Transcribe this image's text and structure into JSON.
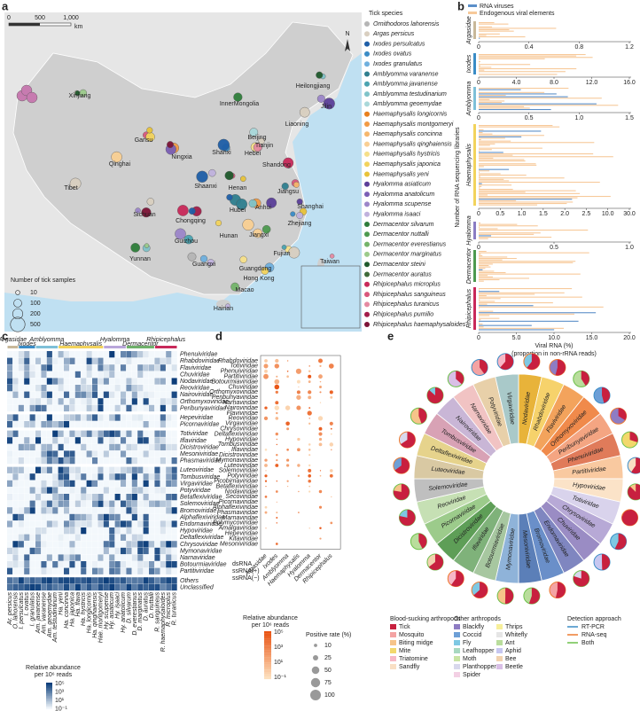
{
  "panel_labels": [
    "a",
    "b",
    "c",
    "d",
    "e"
  ],
  "map": {
    "scale_ticks": [
      "0",
      "500",
      "1,000"
    ],
    "scale_unit": "km",
    "north": "N",
    "provinces": [
      "Heilongjiang",
      "Jilin",
      "Liaoning",
      "InnerMongolia",
      "Xinjiang",
      "Gansu",
      "Qinghai",
      "Tibet",
      "Ningxia",
      "Shanxi",
      "Hebei",
      "Beijing",
      "Tianjin",
      "Shandong",
      "Shaanxi",
      "Henan",
      "Jiangsu",
      "Anhui",
      "Shanghai",
      "Hubei",
      "Sichuan",
      "Chongqing",
      "Zhejiang",
      "Jiangxi",
      "Hunan",
      "Guizhou",
      "Fujian",
      "Yunnan",
      "Guangxi",
      "Guangdong",
      "Hong Kong",
      "Macao",
      "Taiwan",
      "Hainan"
    ],
    "legend_title": "Tick species",
    "species": [
      {
        "name": "Ornithodoros lahorensis",
        "color": "#b5b5b5"
      },
      {
        "name": "Argas persicus",
        "color": "#d9cfc0"
      },
      {
        "name": "Ixodes persulcatus",
        "color": "#1f5fa8"
      },
      {
        "name": "Ixodes ovatus",
        "color": "#3a8cc6"
      },
      {
        "name": "Ixodes granulatus",
        "color": "#6fb0de"
      },
      {
        "name": "Amblyomma varanense",
        "color": "#2f7f8f"
      },
      {
        "name": "Amblyomma javanense",
        "color": "#4aa3b0"
      },
      {
        "name": "Amblyomma testudinarium",
        "color": "#7fc3c9"
      },
      {
        "name": "Amblyomma geoemydae",
        "color": "#a9d8da"
      },
      {
        "name": "Haemaphysalis longicornis",
        "color": "#e8801e"
      },
      {
        "name": "Haemaphysalis montgomeryi",
        "color": "#f29b44"
      },
      {
        "name": "Haemaphysalis concinna",
        "color": "#f6b76c"
      },
      {
        "name": "Haemaphysalis qinghaiensis",
        "color": "#f9cf94"
      },
      {
        "name": "Haemaphysalis hystricis",
        "color": "#f6e08a"
      },
      {
        "name": "Haemaphysalis japonica",
        "color": "#f2d35c"
      },
      {
        "name": "Haemaphysalis yeni",
        "color": "#e8c33a"
      },
      {
        "name": "Hyalomma asiaticum",
        "color": "#5b3f99"
      },
      {
        "name": "Hyalomma anatolicum",
        "color": "#7a5fb5"
      },
      {
        "name": "Hyalomma scupense",
        "color": "#9c86c9"
      },
      {
        "name": "Hyalomma isaaci",
        "color": "#c0b2dd"
      },
      {
        "name": "Dermacentor silvarum",
        "color": "#2e7d3a"
      },
      {
        "name": "Dermacentor nuttalli",
        "color": "#4d9a4f"
      },
      {
        "name": "Dermacentor everestianus",
        "color": "#74b46a"
      },
      {
        "name": "Dermacentor marginatus",
        "color": "#9ccb8b"
      },
      {
        "name": "Dermacentor steini",
        "color": "#1f5a2c"
      },
      {
        "name": "Dermacentor auratus",
        "color": "#3f6b3a"
      },
      {
        "name": "Rhipicephalus microplus",
        "color": "#c8295a"
      },
      {
        "name": "Rhipicephalus sanguineus",
        "color": "#d9577c"
      },
      {
        "name": "Rhipicephalus turanicus",
        "color": "#e58aa2"
      },
      {
        "name": "Rhipicephalus pumilio",
        "color": "#a31d4a"
      },
      {
        "name": "Rhipicephalus haemaphysaloides",
        "color": "#7d1437"
      }
    ],
    "size_legend": {
      "title": "Number of tick samples",
      "values": [
        10,
        100,
        200,
        500
      ]
    }
  },
  "viral_rna": {
    "legend": [
      {
        "name": "RNA viruses",
        "color": "#5b8fc9"
      },
      {
        "name": "Endogenous viral elements",
        "color": "#f7c99a"
      }
    ],
    "groups": [
      {
        "name": "Argasidae",
        "color": "#c8b89a",
        "ticks": [
          "0",
          "0.4",
          "0.8",
          "1.2"
        ]
      },
      {
        "name": "Ixodes",
        "color": "#3a8cc6",
        "ticks": [
          "0",
          "4.0",
          "8.0",
          "12.0",
          "16.0"
        ]
      },
      {
        "name": "Amblyomma",
        "color": "#7ec0d8",
        "ticks": [
          "0",
          "0.5",
          "1.0",
          "1.5"
        ]
      },
      {
        "name": "Haemaphysalis",
        "color": "#f2d35c",
        "ticks": [
          "0",
          "0.5",
          "1.0",
          "1.5",
          "2.0",
          "2.5",
          "10.0",
          "30.0"
        ]
      },
      {
        "name": "Hyalomma",
        "color": "#8a7cc4",
        "ticks": [
          "0",
          "0.5",
          "1.0"
        ]
      },
      {
        "name": "Dermacentor",
        "color": "#4d9a4f",
        "ticks": []
      },
      {
        "name": "Rhipicephalus",
        "color": "#c8295a",
        "ticks": [
          "0",
          "5.0",
          "10.0",
          "15.0",
          "20.0"
        ]
      }
    ],
    "y_label": "Number of RNA sequencing libraries",
    "x_label": [
      "Viral RNA (%)",
      "(proportion in non-rRNA reads)"
    ]
  },
  "heatmap": {
    "genera": [
      {
        "name": "Argasidae",
        "color": "#c8b89a"
      },
      {
        "name": "Ixodes",
        "color": "#3a8cc6"
      },
      {
        "name": "Amblyomma",
        "color": "#7ec0d8"
      },
      {
        "name": "Haemaphysalis",
        "color": "#f2d35c"
      },
      {
        "name": "Hyalomma",
        "color": "#b9a6da"
      },
      {
        "name": "Dermacentor",
        "color": "#6fb06a"
      },
      {
        "name": "Rhipicephalus",
        "color": "#c8295a"
      }
    ],
    "columns": [
      "Ar. persicus",
      "O. lahorensis",
      "I. persulcatus",
      "I. ovatus",
      "I. granulatus",
      "Am. javanense",
      "Am. varanense",
      "Am. geoemydae",
      "Am. testudinarium",
      "Ha. yeni",
      "Ha. concinna",
      "Ha. japonica",
      "Ha. flava",
      "Ha. hystricis",
      "Ha. longicornis",
      "Ha. qinghaiensis",
      "Hae. montgomeryi",
      "Hy. scupense",
      "Hy. asiaticum",
      "Hy. isaaci",
      "Hy. anatolicum",
      "D. silvarum",
      "D. everestianus",
      "D. marginatus",
      "D. auratus",
      "D. nuttalli",
      "R. sanguineus",
      "R. haemaphysaloides",
      "R. microplus",
      "R. turanicus"
    ],
    "families": [
      {
        "name": "Phenuiviridae",
        "color": "#7a3f9c"
      },
      {
        "name": "Rhabdoviridae",
        "color": "#7a3f9c"
      },
      {
        "name": "Flaviviridae",
        "color": "#9a7a2a"
      },
      {
        "name": "Chuviridae",
        "color": "#7a3f9c"
      },
      {
        "name": "Nodaviridae",
        "color": "#9a7a2a"
      },
      {
        "name": "Reoviridae",
        "color": "#3a67b0"
      },
      {
        "name": "Nairoviridae",
        "color": "#7a3f9c"
      },
      {
        "name": "Orthomyxoviridae",
        "color": "#7a3f9c"
      },
      {
        "name": "Peribunyaviridae",
        "color": "#7a3f9c"
      },
      {
        "name": "Hepeviridae",
        "color": "#9a7a2a"
      },
      {
        "name": "Picornaviridae",
        "color": "#9a7a2a"
      },
      {
        "name": "Totiviridae",
        "color": "#3a67b0"
      },
      {
        "name": "Iflaviridae",
        "color": "#9a7a2a"
      },
      {
        "name": "Dicistroviridae",
        "color": "#9a7a2a"
      },
      {
        "name": "Mesoniviridae",
        "color": "#9a7a2a"
      },
      {
        "name": "Phasmaviridae",
        "color": "#7a3f9c"
      },
      {
        "name": "Luteoviridae",
        "color": "#9a7a2a"
      },
      {
        "name": "Tombusviridae",
        "color": "#9a7a2a"
      },
      {
        "name": "Virgaviridae",
        "color": "#9a7a2a"
      },
      {
        "name": "Potyviridae",
        "color": "#9a7a2a"
      },
      {
        "name": "Betaflexiviridae",
        "color": "#9a7a2a"
      },
      {
        "name": "Solemoviridae",
        "color": "#9a7a2a"
      },
      {
        "name": "Bromoviridae",
        "color": "#9a7a2a"
      },
      {
        "name": "Alphaflexiviridae",
        "color": "#9a7a2a"
      },
      {
        "name": "Endornaviridae",
        "color": "#3a67b0"
      },
      {
        "name": "Hypoviridae",
        "color": "#9a7a2a"
      },
      {
        "name": "Deltaflexiviridae",
        "color": "#9a7a2a"
      },
      {
        "name": "Chrysoviridae",
        "color": "#3a67b0"
      },
      {
        "name": "Mymonaviridae",
        "color": "#7a3f9c"
      },
      {
        "name": "Narnaviridae",
        "color": "#9a7a2a"
      },
      {
        "name": "Botourmiaviridae",
        "color": "#9a7a2a"
      },
      {
        "name": "Partitiviridae",
        "color": "#3a67b0"
      },
      {
        "name": "Others",
        "color": "#222222"
      },
      {
        "name": "Unclassified",
        "color": "#222222"
      }
    ],
    "legend_title": [
      "Relative abundance",
      "per 10⁶ reads"
    ],
    "legend_ticks": [
      "10⁵",
      "10³",
      "10¹",
      "10⁻¹"
    ]
  },
  "dotplot": {
    "families": [
      {
        "name": "Rhabdoviridae",
        "color": "#7a3f9c"
      },
      {
        "name": "Totiviridae",
        "color": "#3a67b0"
      },
      {
        "name": "Phenuiviridae",
        "color": "#7a3f9c"
      },
      {
        "name": "Partitiviridae",
        "color": "#3a67b0"
      },
      {
        "name": "Botourmiaviridae",
        "color": "#9a7a2a"
      },
      {
        "name": "Chuviridae",
        "color": "#7a3f9c"
      },
      {
        "name": "Orthomyxoviridae",
        "color": "#7a3f9c"
      },
      {
        "name": "Peribunyaviridae",
        "color": "#7a3f9c"
      },
      {
        "name": "Narnaviridae",
        "color": "#9a7a2a"
      },
      {
        "name": "Nairoviridae",
        "color": "#7a3f9c"
      },
      {
        "name": "Flaviviridae",
        "color": "#9a7a2a"
      },
      {
        "name": "Reoviridae",
        "color": "#3a67b0"
      },
      {
        "name": "Virgaviridae",
        "color": "#9a7a2a"
      },
      {
        "name": "Chrysoviridae",
        "color": "#3a67b0"
      },
      {
        "name": "Deltaflexiviridae",
        "color": "#9a7a2a"
      },
      {
        "name": "Hypoviridae",
        "color": "#9a7a2a"
      },
      {
        "name": "Tombusviridae",
        "color": "#9a7a2a"
      },
      {
        "name": "Iflaviridae",
        "color": "#9a7a2a"
      },
      {
        "name": "Dicistroviridae",
        "color": "#9a7a2a"
      },
      {
        "name": "Mymonaviridae",
        "color": "#7a3f9c"
      },
      {
        "name": "Luteoviridae",
        "color": "#9a7a2a"
      },
      {
        "name": "Solemoviridae",
        "color": "#9a7a2a"
      },
      {
        "name": "Potyviridae",
        "color": "#9a7a2a"
      },
      {
        "name": "Picobirnaviridae",
        "color": "#3a67b0"
      },
      {
        "name": "Betaflexiviridae",
        "color": "#9a7a2a"
      },
      {
        "name": "Nodaviridae",
        "color": "#9a7a2a"
      },
      {
        "name": "Secoviridae",
        "color": "#9a7a2a"
      },
      {
        "name": "Picornaviridae",
        "color": "#9a7a2a"
      },
      {
        "name": "Alphaflexiviridae",
        "color": "#9a7a2a"
      },
      {
        "name": "Phasmaviridae",
        "color": "#7a3f9c"
      },
      {
        "name": "Marnaviridae",
        "color": "#9a7a2a"
      },
      {
        "name": "Polymycoviridae",
        "color": "#3a67b0"
      },
      {
        "name": "Amalgaviridae",
        "color": "#3a67b0"
      },
      {
        "name": "Hepeviridae",
        "color": "#9a7a2a"
      },
      {
        "name": "Kitaviridae",
        "color": "#9a7a2a"
      },
      {
        "name": "Mesoniviridae",
        "color": "#9a7a2a"
      }
    ],
    "columns": [
      "Argasidae",
      "Ixodes",
      "Amblyomma",
      "Haemaphysalis",
      "Hyalomma",
      "Dermacentor",
      "Rhipicephalus"
    ],
    "genome_types": [
      {
        "name": "dsRNA",
        "color": "#3a67b0"
      },
      {
        "name": "ssRNA(+)",
        "color": "#9a7a2a"
      },
      {
        "name": "ssRNA(−)",
        "color": "#7a3f9c"
      }
    ],
    "legend_title": [
      "Relative abundance",
      "per 10⁶ reads"
    ],
    "legend_ticks": [
      "10⁵",
      "10³",
      "10¹",
      "10⁻¹"
    ],
    "rate_title": "Positive rate (%)",
    "rate_values": [
      10,
      25,
      50,
      75,
      100
    ]
  },
  "wheel": {
    "families": [
      "Nodaviridae",
      "Rhabdoviridae",
      "Flaviviridae",
      "Orthomyxoviridae",
      "Peribunyaviridae",
      "Phenuiviridae",
      "Partitiviridae",
      "Hypoviridae",
      "Totiviridae",
      "Chrysoviridae",
      "Chuviridae",
      "Endornaviridae",
      "Bromoviridae",
      "Mesoniviridae",
      "Mymonaviridae",
      "Botourmiaviridae",
      "Iflaviridae",
      "Dicistroviridae",
      "Picornaviridae",
      "Reoviridae",
      "Solemoviridae",
      "Luteoviridae",
      "Deltaflexiviridae",
      "Tombusviridae",
      "Nairoviridae",
      "Narnaviridae",
      "Potyviridae",
      "Virgaviridae"
    ],
    "blood_title": "Blood-sucking arthropods",
    "blood": [
      {
        "name": "Tick",
        "color": "#c8203f"
      },
      {
        "name": "Mosquito",
        "color": "#f4a3a3"
      },
      {
        "name": "Biting midge",
        "color": "#f6c48a"
      },
      {
        "name": "Mite",
        "color": "#f2d86c"
      },
      {
        "name": "Triatomine",
        "color": "#f7b8c6"
      },
      {
        "name": "Sandfly",
        "color": "#f9dfc4"
      }
    ],
    "other_title": "Other arthropods",
    "other": [
      {
        "name": "Blackfly",
        "color": "#8e7cc3"
      },
      {
        "name": "Coccid",
        "color": "#6d9fd6"
      },
      {
        "name": "Fly",
        "color": "#7ec8e3"
      },
      {
        "name": "Leafhopper",
        "color": "#a8d8c0"
      },
      {
        "name": "Moth",
        "color": "#c9e4a4"
      },
      {
        "name": "Planthopper",
        "color": "#d8d8ec"
      },
      {
        "name": "Spider",
        "color": "#f3d0e4"
      },
      {
        "name": "Thrips",
        "color": "#f7ef9a"
      },
      {
        "name": "Whitefly",
        "color": "#e5e5e5"
      },
      {
        "name": "Ant",
        "color": "#b9dd9c"
      },
      {
        "name": "Aphid",
        "color": "#c7c7f0"
      },
      {
        "name": "Bee",
        "color": "#f2d2b0"
      },
      {
        "name": "Beetle",
        "color": "#d9bfe6"
      }
    ],
    "approach_title": "Detection approach",
    "approach": [
      {
        "name": "RT-PCR",
        "color": "#3a8cc6"
      },
      {
        "name": "RNA-seq",
        "color": "#ee7b30"
      },
      {
        "name": "Both",
        "color": "#6cc04a"
      }
    ]
  }
}
